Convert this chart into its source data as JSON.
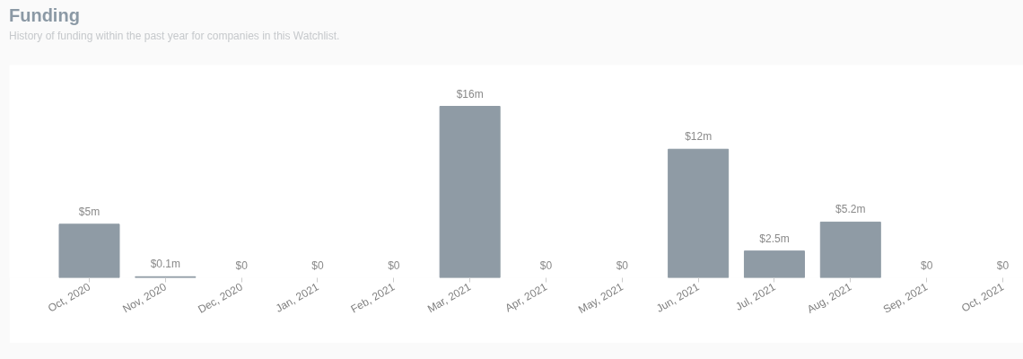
{
  "chart_data": {
    "type": "bar",
    "title": "Funding",
    "subtitle": "History of funding within the past year for companies in this Watchlist.",
    "categories": [
      "Oct, 2020",
      "Nov, 2020",
      "Dec, 2020",
      "Jan, 2021",
      "Feb, 2021",
      "Mar, 2021",
      "Apr, 2021",
      "May, 2021",
      "Jun, 2021",
      "Jul, 2021",
      "Aug, 2021",
      "Sep, 2021",
      "Oct, 2021"
    ],
    "values": [
      5,
      0.1,
      0,
      0,
      0,
      16,
      0,
      0,
      12,
      2.5,
      5.2,
      0,
      0
    ],
    "value_labels": [
      "$5m",
      "$0.1m",
      "$0",
      "$0",
      "$0",
      "$16m",
      "$0",
      "$0",
      "$12m",
      "$2.5m",
      "$5.2m",
      "$0",
      "$0"
    ],
    "color": "#8f9ba5",
    "grid": false
  }
}
